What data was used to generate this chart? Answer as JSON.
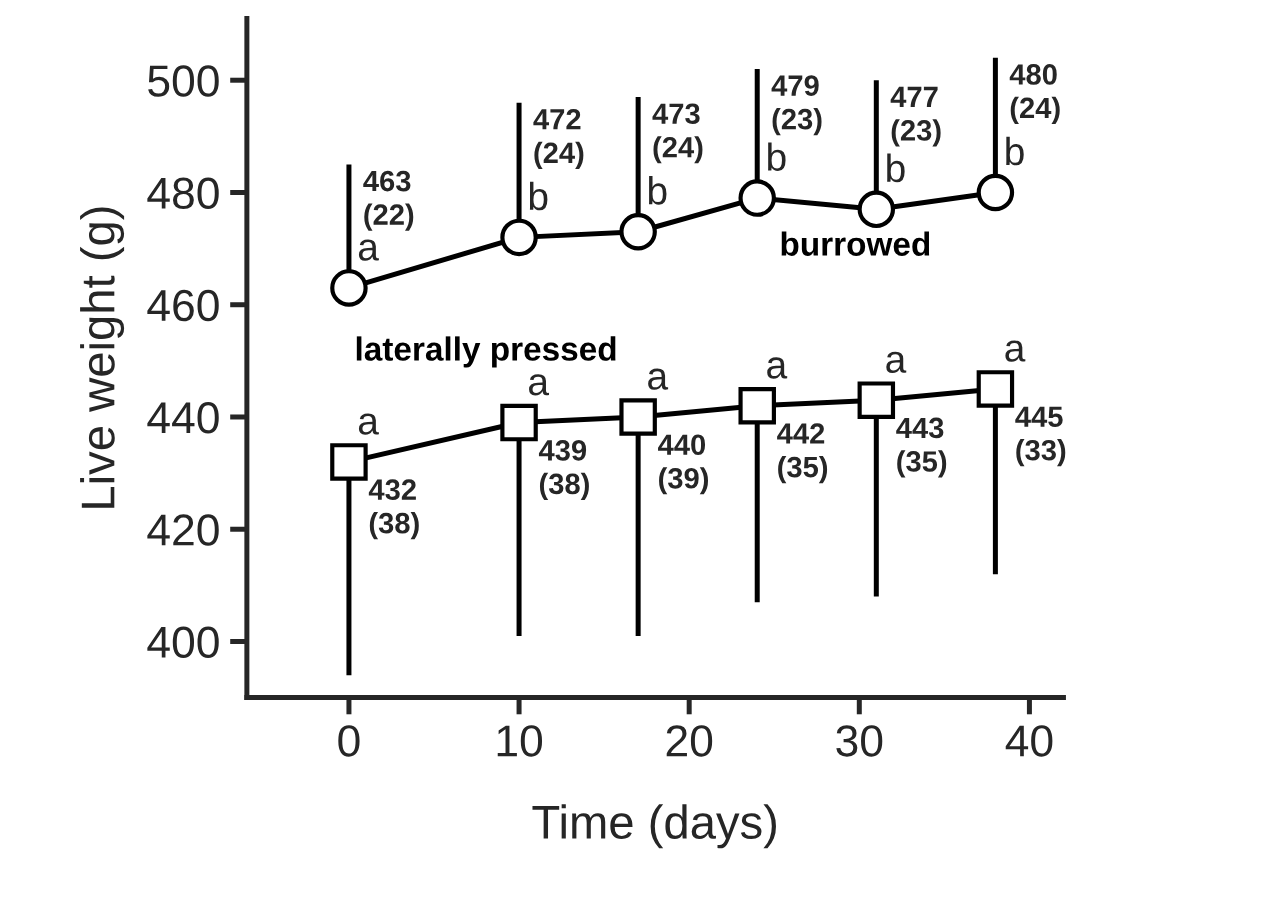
{
  "chart_data": {
    "type": "line",
    "xlabel": "Time (days)",
    "ylabel": "Live weight (g)",
    "x": [
      0,
      10,
      17,
      24,
      31,
      38
    ],
    "xlim": [
      -6,
      42
    ],
    "xticks": [
      0,
      10,
      20,
      30,
      40
    ],
    "ylim": [
      390,
      511
    ],
    "yticks": [
      400,
      420,
      440,
      460,
      480,
      500
    ],
    "grid": false,
    "line_style": "solid",
    "series": [
      {
        "name": "burrowed",
        "color": "#000000",
        "marker": "circle",
        "values": [
          463,
          472,
          473,
          479,
          477,
          480
        ],
        "errors": [
          [
            463,
            485
          ],
          [
            472,
            496
          ],
          [
            473,
            497
          ],
          [
            479,
            502
          ],
          [
            477,
            500
          ],
          [
            480,
            504
          ]
        ],
        "value_labels": [
          "463\n(22)",
          "472\n(24)",
          "473\n(24)",
          "479\n(23)",
          "477\n(23)",
          "480\n(24)"
        ]
      },
      {
        "name": "laterally pressed",
        "color": "#000000",
        "marker": "square",
        "values": [
          432,
          439,
          440,
          442,
          443,
          445
        ],
        "errors": [
          [
            394,
            432
          ],
          [
            401,
            439
          ],
          [
            401,
            440
          ],
          [
            407,
            442
          ],
          [
            408,
            443
          ],
          [
            412,
            445
          ]
        ],
        "value_labels": [
          "432\n(38)",
          "439\n(38)",
          "440\n(39)",
          "442\n(35)",
          "443\n(35)",
          "445\n(33)"
        ]
      }
    ],
    "annotations": [
      {
        "text": "a",
        "x": 0,
        "y": 463
      },
      {
        "text": "b",
        "x": 10,
        "y": 472
      },
      {
        "text": "b",
        "x": 17,
        "y": 473
      },
      {
        "text": "b",
        "x": 24,
        "y": 479
      },
      {
        "text": "b",
        "x": 31,
        "y": 477
      },
      {
        "text": "b",
        "x": 38,
        "y": 480
      },
      {
        "text": "a",
        "x": 0,
        "y": 432
      },
      {
        "text": "a",
        "x": 10,
        "y": 439
      },
      {
        "text": "a",
        "x": 17,
        "y": 440
      },
      {
        "text": "a",
        "x": 24,
        "y": 442
      },
      {
        "text": "a",
        "x": 31,
        "y": 443
      },
      {
        "text": "a",
        "x": 38,
        "y": 445
      }
    ]
  }
}
